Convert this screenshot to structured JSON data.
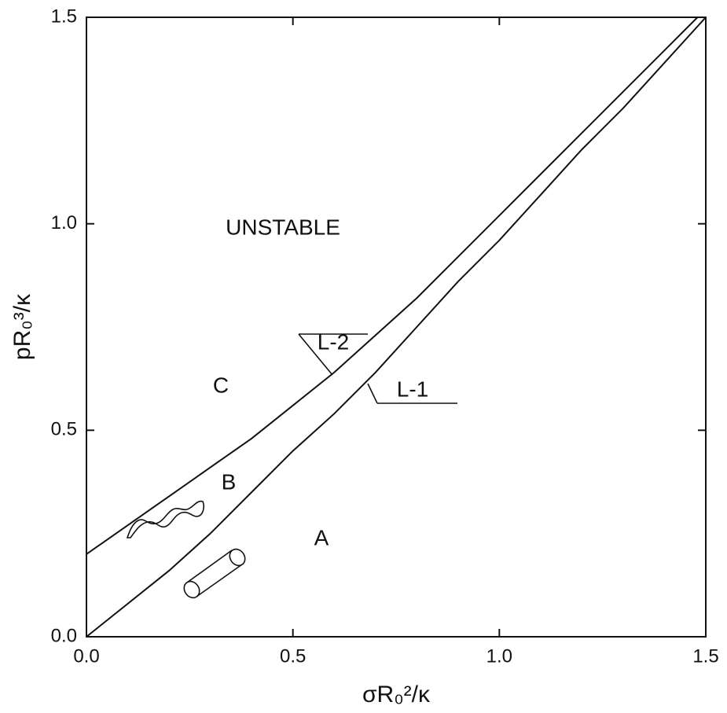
{
  "chart_data": {
    "type": "line",
    "x_label": "σR₀²/κ",
    "y_label": "pR₀³/κ",
    "xlim": [
      0,
      1.5
    ],
    "ylim": [
      0,
      1.5
    ],
    "xticks": [
      {
        "value": 0,
        "label": "0.0"
      },
      0.5,
      {
        "value": 1,
        "label": "1.0"
      },
      {
        "value": 1.5,
        "label": "1.5"
      }
    ],
    "yticks": [
      {
        "value": 0,
        "label": "0.0"
      },
      0.5,
      {
        "value": 1,
        "label": "1.0"
      },
      {
        "value": 1.5,
        "label": "1.5"
      }
    ],
    "series": [
      {
        "name": "L-1",
        "color": "#111111",
        "x": [
          0,
          0.1,
          0.2,
          0.3,
          0.4,
          0.5,
          0.6,
          0.7,
          0.8,
          0.9,
          1.0,
          1.1,
          1.2,
          1.3,
          1.4,
          1.5
        ],
        "values": [
          0,
          0.08,
          0.16,
          0.25,
          0.35,
          0.45,
          0.54,
          0.64,
          0.75,
          0.86,
          0.96,
          1.07,
          1.18,
          1.28,
          1.39,
          1.5
        ]
      },
      {
        "name": "L-2",
        "color": "#111111",
        "x": [
          0,
          0.1,
          0.2,
          0.3,
          0.4,
          0.5,
          0.6,
          0.7,
          0.8,
          0.9,
          1.0,
          1.1,
          1.2,
          1.3,
          1.4,
          1.48
        ],
        "values": [
          0.2,
          0.27,
          0.34,
          0.41,
          0.48,
          0.56,
          0.64,
          0.73,
          0.82,
          0.92,
          1.02,
          1.12,
          1.22,
          1.32,
          1.42,
          1.5
        ]
      }
    ],
    "annotations": [
      "UNSTABLE",
      "C",
      "B",
      "A"
    ]
  }
}
